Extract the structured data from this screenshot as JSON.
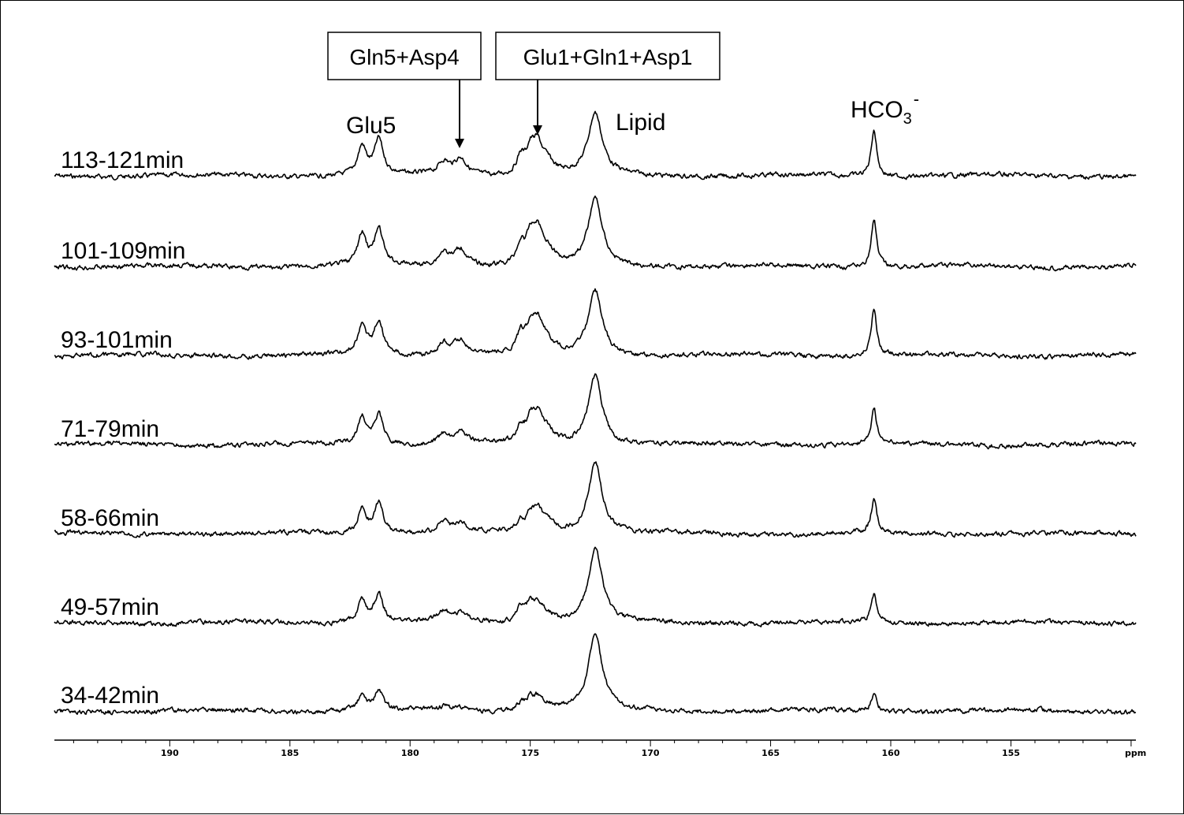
{
  "chart_data": {
    "type": "line",
    "title": "",
    "xlabel": "ppm",
    "ylabel": "",
    "x_unit": "ppm",
    "xlim": [
      194.8,
      149.8
    ],
    "x_reversed": true,
    "grid": false,
    "x_ticks": [
      190,
      185,
      180,
      175,
      170,
      165,
      160,
      155
    ],
    "x_tick_labels": [
      "190",
      "185",
      "180",
      "175",
      "170",
      "165",
      "160",
      "155"
    ],
    "peaks_ppm": {
      "Glu5_a": 182.0,
      "Glu5_b": 181.3,
      "Gln5_Asp4_a": 178.6,
      "Gln5_Asp4_b": 177.9,
      "Glu1_Gln1_Asp1_a": 175.4,
      "Glu1_Gln1_Asp1_b": 175.0,
      "Glu1_Gln1_Asp1_c": 174.7,
      "Glu1_Gln1_Asp1_d": 174.3,
      "Lipid": 172.3,
      "HCO3": 160.7
    },
    "series": [
      {
        "name": "113-121min",
        "intensities": {
          "Glu5_a": 36,
          "Glu5_b": 44,
          "Gln5_Asp4_a": 16,
          "Gln5_Asp4_b": 21,
          "Glu1_Gln1_Asp1_a": 22,
          "Glu1_Gln1_Asp1_b": 26,
          "Glu1_Gln1_Asp1_c": 34,
          "Glu1_Gln1_Asp1_d": 14,
          "Lipid": 78,
          "HCO3": 60
        }
      },
      {
        "name": "101-109min",
        "intensities": {
          "Glu5_a": 38,
          "Glu5_b": 44,
          "Gln5_Asp4_a": 17,
          "Gln5_Asp4_b": 22,
          "Glu1_Gln1_Asp1_a": 24,
          "Glu1_Gln1_Asp1_b": 28,
          "Glu1_Gln1_Asp1_c": 38,
          "Glu1_Gln1_Asp1_d": 16,
          "Lipid": 85,
          "HCO3": 60
        }
      },
      {
        "name": "93-101min",
        "intensities": {
          "Glu5_a": 36,
          "Glu5_b": 43,
          "Gln5_Asp4_a": 16,
          "Gln5_Asp4_b": 19,
          "Glu1_Gln1_Asp1_a": 22,
          "Glu1_Gln1_Asp1_b": 26,
          "Glu1_Gln1_Asp1_c": 36,
          "Glu1_Gln1_Asp1_d": 14,
          "Lipid": 82,
          "HCO3": 58
        }
      },
      {
        "name": "71-79min",
        "intensities": {
          "Glu5_a": 33,
          "Glu5_b": 38,
          "Gln5_Asp4_a": 12,
          "Gln5_Asp4_b": 14,
          "Glu1_Gln1_Asp1_a": 18,
          "Glu1_Gln1_Asp1_b": 22,
          "Glu1_Gln1_Asp1_c": 30,
          "Glu1_Gln1_Asp1_d": 13,
          "Lipid": 88,
          "HCO3": 44
        }
      },
      {
        "name": "58-66min",
        "intensities": {
          "Glu5_a": 30,
          "Glu5_b": 40,
          "Gln5_Asp4_a": 14,
          "Gln5_Asp4_b": 10,
          "Glu1_Gln1_Asp1_a": 12,
          "Glu1_Gln1_Asp1_b": 16,
          "Glu1_Gln1_Asp1_c": 25,
          "Glu1_Gln1_Asp1_d": 12,
          "Lipid": 90,
          "HCO3": 42
        }
      },
      {
        "name": "49-57min",
        "intensities": {
          "Glu5_a": 28,
          "Glu5_b": 36,
          "Gln5_Asp4_a": 12,
          "Gln5_Asp4_b": 10,
          "Glu1_Gln1_Asp1_a": 16,
          "Glu1_Gln1_Asp1_b": 18,
          "Glu1_Gln1_Asp1_c": 20,
          "Glu1_Gln1_Asp1_d": 8,
          "Lipid": 94,
          "HCO3": 34
        }
      },
      {
        "name": "34-42min",
        "intensities": {
          "Glu5_a": 18,
          "Glu5_b": 24,
          "Gln5_Asp4_a": 4,
          "Gln5_Asp4_b": 4,
          "Glu1_Gln1_Asp1_a": 8,
          "Glu1_Gln1_Asp1_b": 12,
          "Glu1_Gln1_Asp1_c": 14,
          "Glu1_Gln1_Asp1_d": 6,
          "Lipid": 95,
          "HCO3": 22
        }
      }
    ],
    "annotations": {
      "glu5": "Glu5",
      "lipid": "Lipid",
      "hco3_main": "HCO",
      "hco3_sub": "3",
      "hco3_sup": "-",
      "box1": "Gln5+Asp4",
      "box2": "Glu1+Gln1+Asp1"
    }
  }
}
